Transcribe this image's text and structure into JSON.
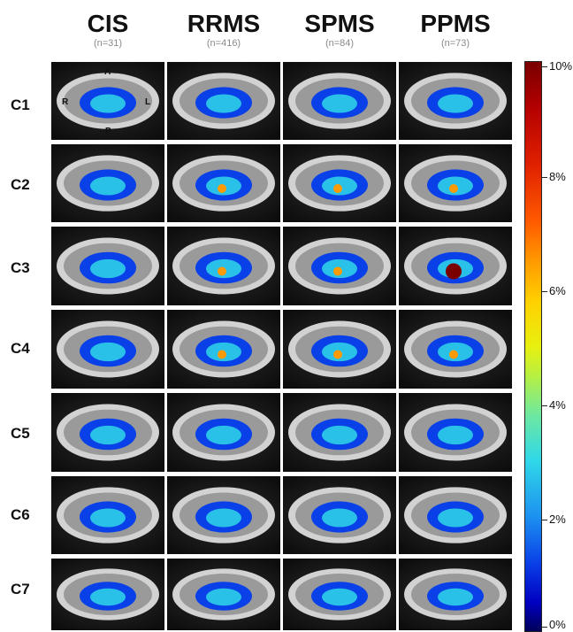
{
  "columns": [
    {
      "title": "CIS",
      "n": "(n=31)"
    },
    {
      "title": "RRMS",
      "n": "(n=416)"
    },
    {
      "title": "SPMS",
      "n": "(n=84)"
    },
    {
      "title": "PPMS",
      "n": "(n=73)"
    }
  ],
  "rows": [
    "C1",
    "C2",
    "C3",
    "C4",
    "C5",
    "C6",
    "C7"
  ],
  "orientation": {
    "anterior": "A",
    "posterior": "P",
    "right": "R",
    "left": "L"
  },
  "colorbar": {
    "ticks": [
      "10%",
      "8%",
      "6%",
      "4%",
      "2%",
      "0%"
    ],
    "colors": [
      "#7a0000",
      "#e02000",
      "#ff9a00",
      "#e8f010",
      "#30d8e8",
      "#1c90f0",
      "#0a40e8",
      "#00005a"
    ]
  }
}
